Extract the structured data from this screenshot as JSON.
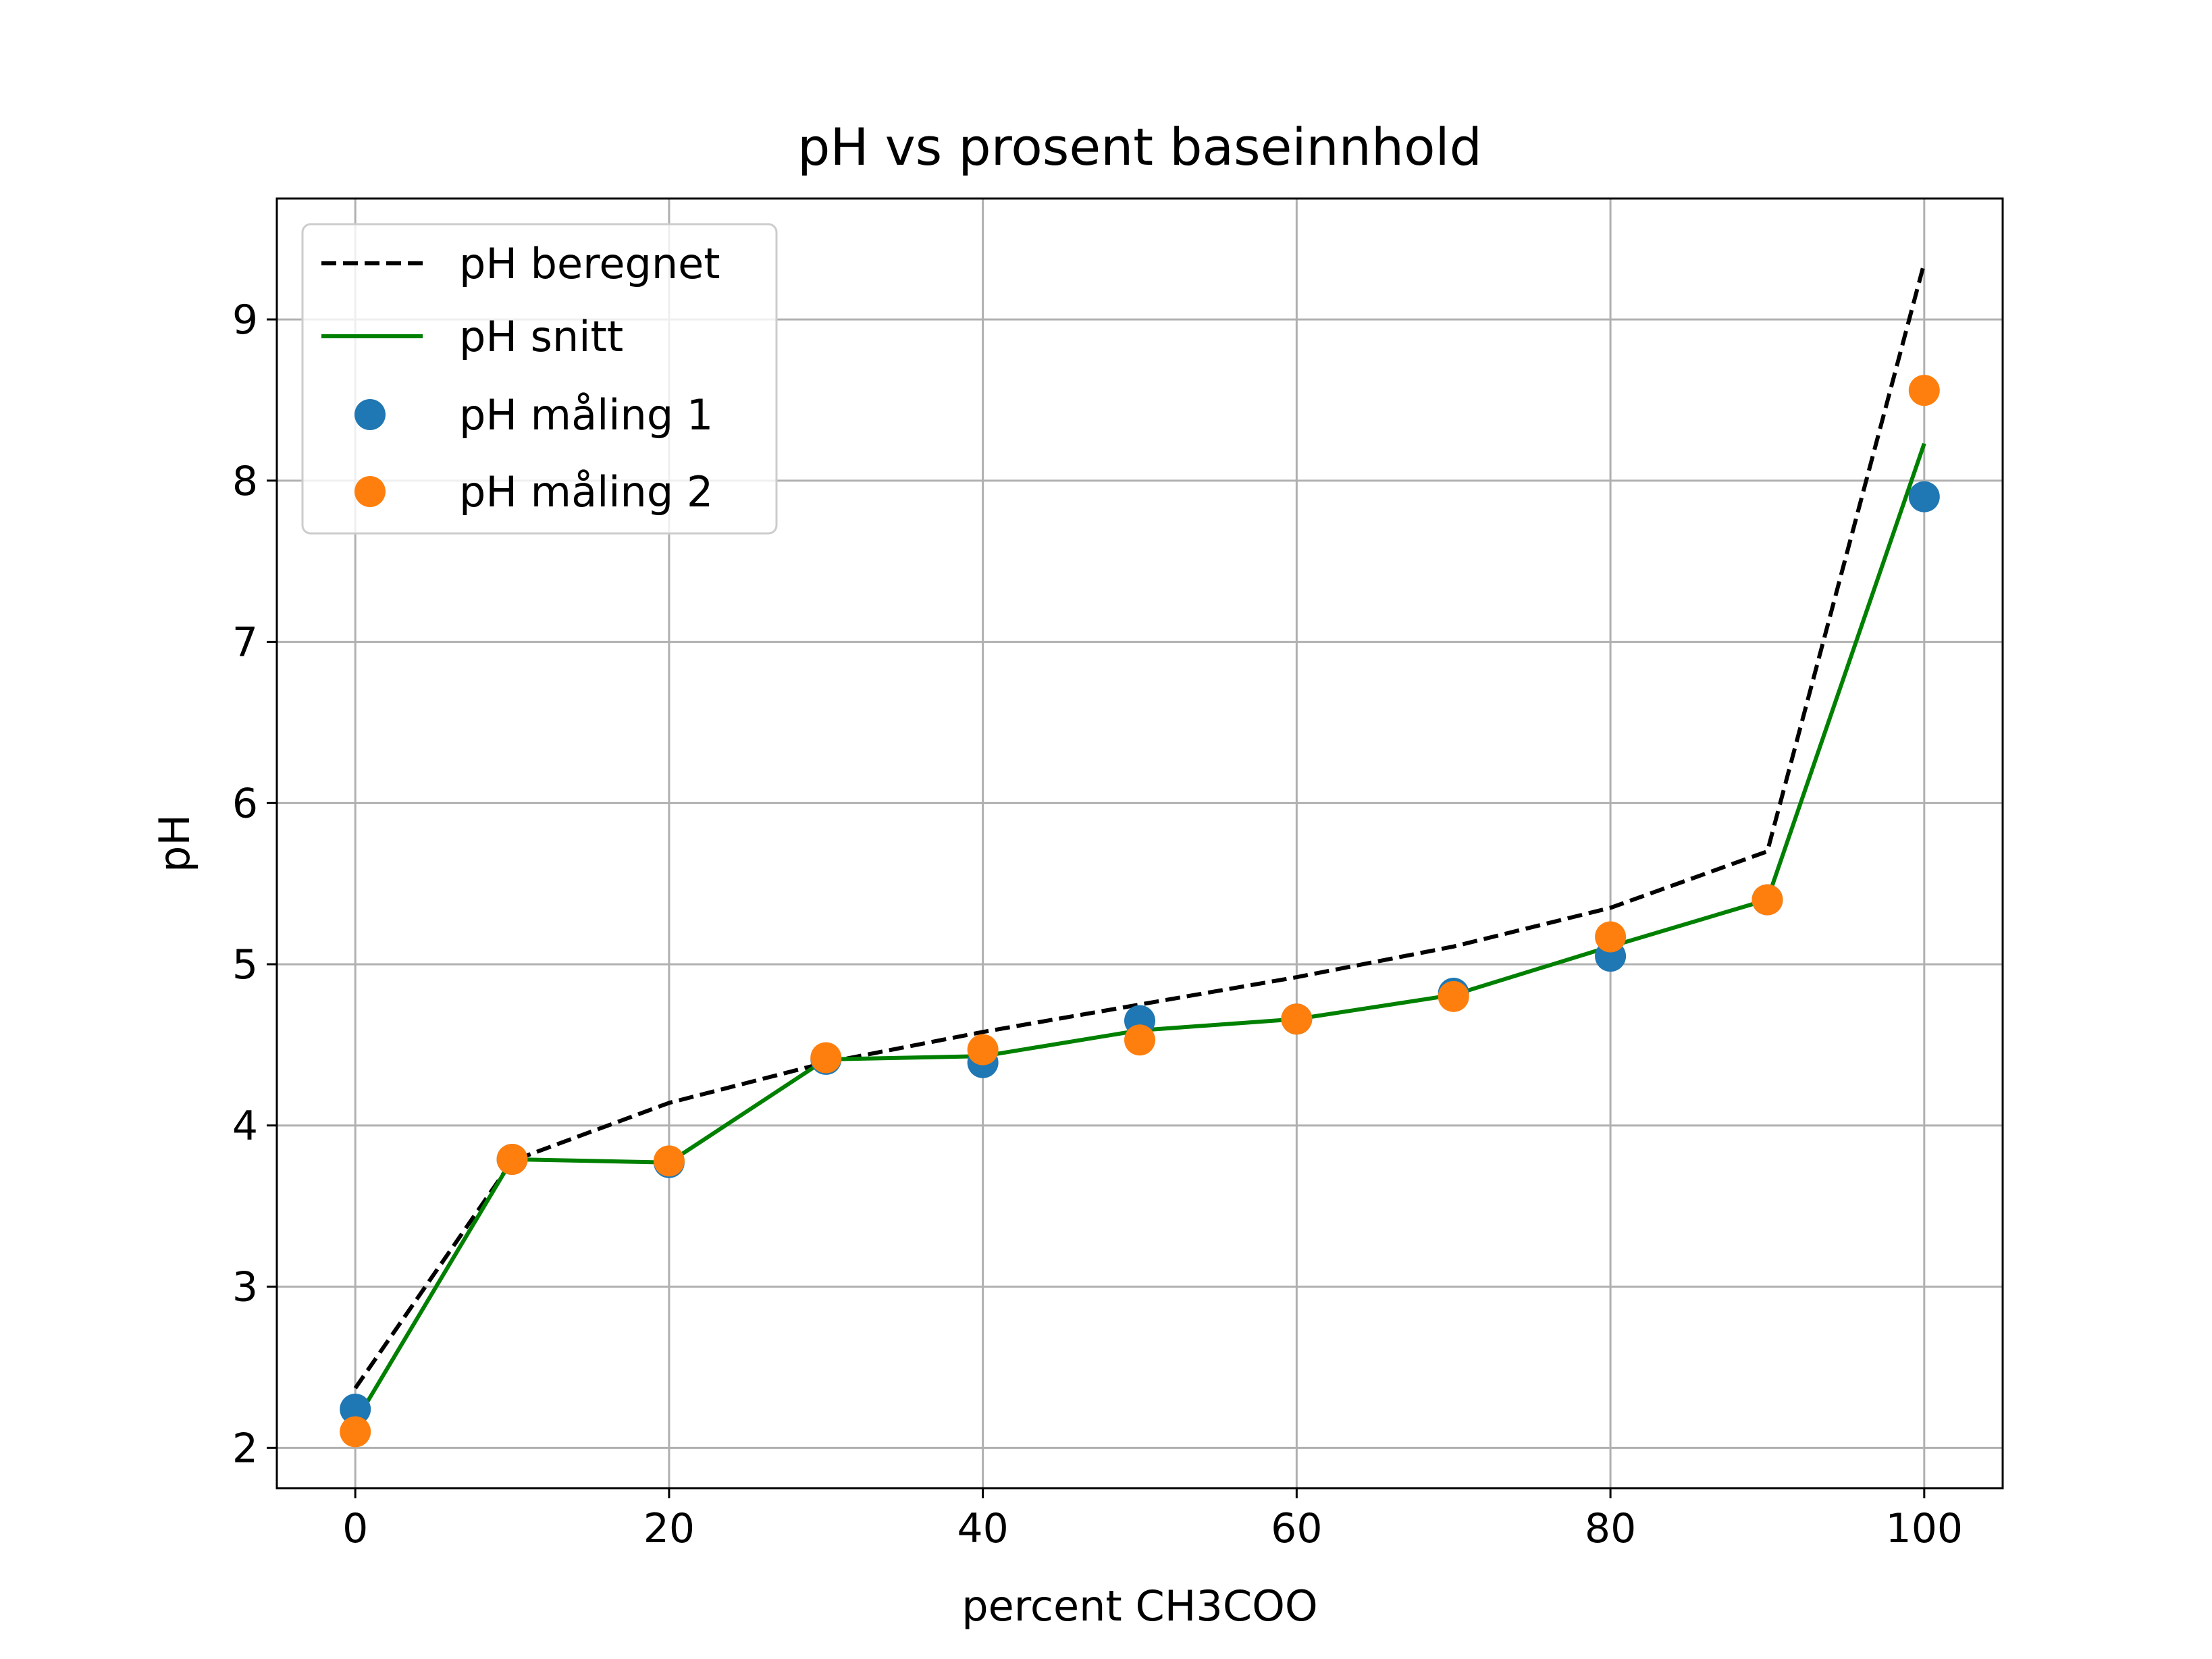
{
  "chart_data": {
    "type": "line",
    "title": "pH vs prosent baseinnhold",
    "xlabel": "percent CH3COO",
    "ylabel": "pH",
    "xlim": [
      -5,
      105
    ],
    "ylim": [
      1.75,
      9.75
    ],
    "x_ticks": [
      0,
      20,
      40,
      60,
      80,
      100
    ],
    "y_ticks": [
      2,
      3,
      4,
      5,
      6,
      7,
      8,
      9
    ],
    "grid": true,
    "legend_position": "upper-left",
    "x": [
      0,
      10,
      20,
      30,
      40,
      50,
      60,
      70,
      80,
      90,
      100
    ],
    "series": [
      {
        "name": "pH beregnet",
        "kind": "line",
        "style": "dashed",
        "color": "#000000",
        "values": [
          2.37,
          3.78,
          4.14,
          4.39,
          4.58,
          4.75,
          4.92,
          5.11,
          5.35,
          5.7,
          9.35
        ]
      },
      {
        "name": "pH snitt",
        "kind": "line",
        "style": "solid",
        "color": "#008000",
        "values": [
          2.16,
          3.79,
          3.77,
          4.41,
          4.43,
          4.59,
          4.66,
          4.81,
          5.11,
          5.4,
          8.23
        ]
      },
      {
        "name": "pH måling 1",
        "kind": "scatter",
        "color": "#1f77b4",
        "values": [
          2.24,
          3.79,
          3.77,
          4.41,
          4.39,
          4.65,
          4.66,
          4.82,
          5.05,
          5.4,
          7.9
        ]
      },
      {
        "name": "pH måling 2",
        "kind": "scatter",
        "color": "#ff7f0e",
        "values": [
          2.1,
          3.79,
          3.78,
          4.42,
          4.47,
          4.53,
          4.66,
          4.8,
          5.17,
          5.4,
          8.56
        ]
      }
    ]
  }
}
